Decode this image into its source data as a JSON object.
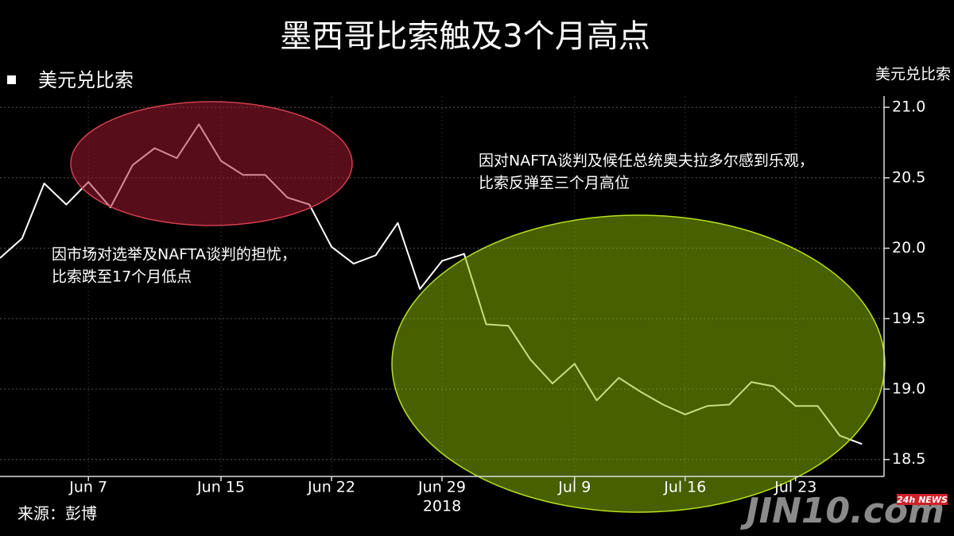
{
  "chart_data": {
    "type": "line",
    "title": "墨西哥比索触及3个月高点",
    "y_label": "美元兑比索",
    "source": "来源：彭博",
    "watermark": "JIN10.com",
    "watermark_badge": "24h NEWS",
    "year_label": "2018",
    "x": [
      "2018-06-01",
      "2018-06-04",
      "2018-06-05",
      "2018-06-06",
      "2018-06-07",
      "2018-06-08",
      "2018-06-11",
      "2018-06-12",
      "2018-06-13",
      "2018-06-14",
      "2018-06-15",
      "2018-06-18",
      "2018-06-19",
      "2018-06-20",
      "2018-06-21",
      "2018-06-22",
      "2018-06-25",
      "2018-06-26",
      "2018-06-27",
      "2018-06-28",
      "2018-06-29",
      "2018-07-02",
      "2018-07-03",
      "2018-07-04",
      "2018-07-05",
      "2018-07-06",
      "2018-07-09",
      "2018-07-10",
      "2018-07-11",
      "2018-07-12",
      "2018-07-13",
      "2018-07-16",
      "2018-07-17",
      "2018-07-18",
      "2018-07-19",
      "2018-07-20",
      "2018-07-23",
      "2018-07-24",
      "2018-07-25",
      "2018-07-26"
    ],
    "series": [
      {
        "name": "美元兑比索",
        "color": "#ffffff",
        "values": [
          19.93,
          20.07,
          20.46,
          20.31,
          20.47,
          20.29,
          20.59,
          20.71,
          20.64,
          20.88,
          20.62,
          20.52,
          20.52,
          20.36,
          20.31,
          20.01,
          19.89,
          19.95,
          20.18,
          19.71,
          19.91,
          19.96,
          19.46,
          19.45,
          19.21,
          19.04,
          19.18,
          18.92,
          19.08,
          18.98,
          18.89,
          18.82,
          18.88,
          18.89,
          19.05,
          19.02,
          18.88,
          18.88,
          18.67,
          18.61
        ]
      }
    ],
    "xlim": [
      "2018-06-01",
      "2018-07-27"
    ],
    "xticks": [
      {
        "value": "2018-06-07",
        "label": "Jun 7"
      },
      {
        "value": "2018-06-15",
        "label": "Jun 15"
      },
      {
        "value": "2018-06-22",
        "label": "Jun 22"
      },
      {
        "value": "2018-06-29",
        "label": "Jun 29"
      },
      {
        "value": "2018-07-09",
        "label": "Jul 9"
      },
      {
        "value": "2018-07-16",
        "label": "Jul 16"
      },
      {
        "value": "2018-07-23",
        "label": "Jul 23"
      }
    ],
    "ylim": [
      18.38,
      21.08
    ],
    "yticks": [
      {
        "value": 21,
        "label": "21.0"
      },
      20.5,
      {
        "value": 20,
        "label": "20.0"
      },
      19.5,
      {
        "value": 19,
        "label": "19.0"
      },
      18.5
    ],
    "grid": true,
    "annotations": [
      {
        "lines": [
          "因市场对选举及NAFTA谈判的担忧，",
          "比索跌至17个月低点"
        ]
      },
      {
        "lines": [
          "因对NAFTA谈判及候任总统奥夫拉多尔感到乐观，",
          "比索反弹至三个月高位"
        ]
      }
    ]
  }
}
